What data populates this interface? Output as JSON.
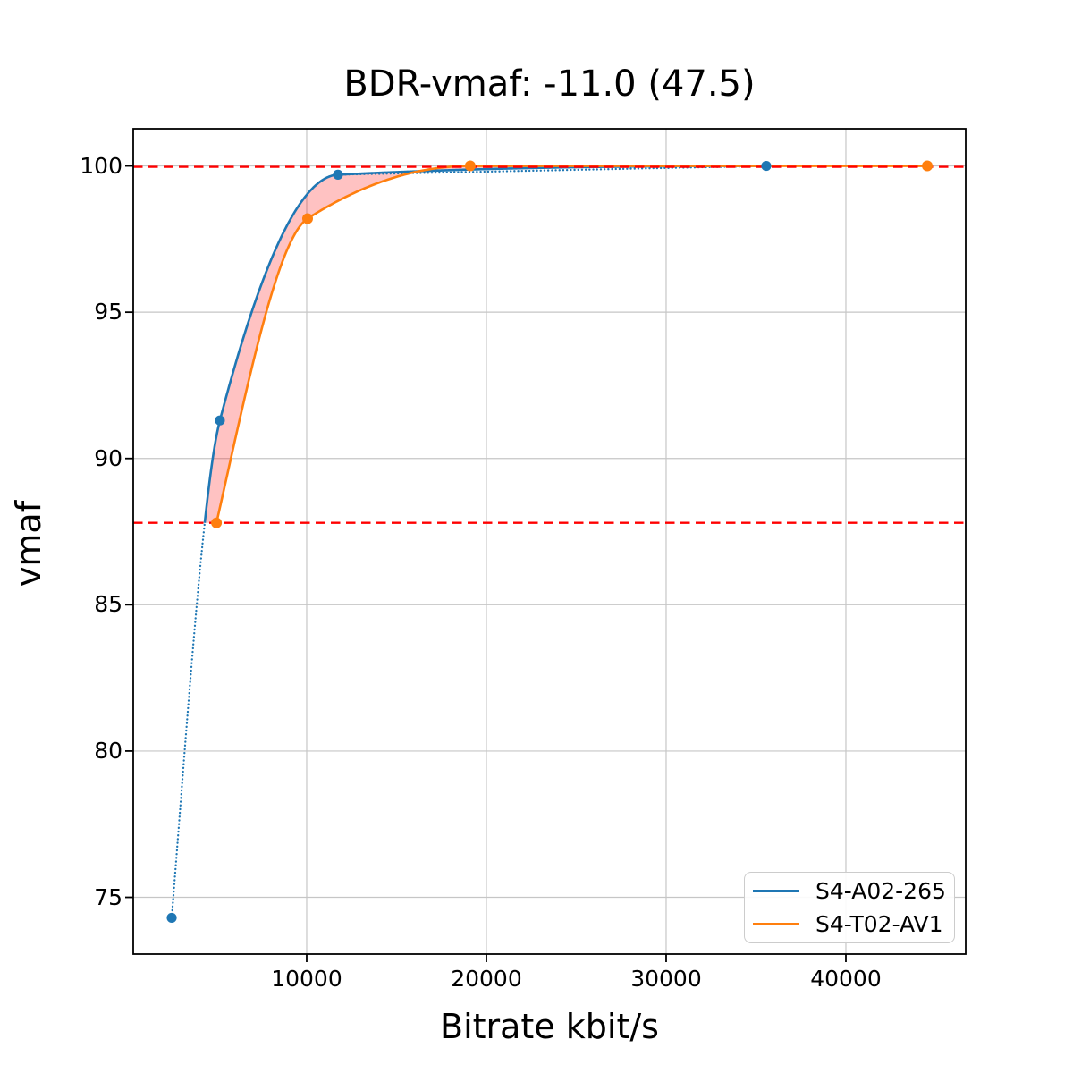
{
  "chart_data": {
    "type": "line",
    "title": "BDR-vmaf: -11.0 (47.5)",
    "xlabel": "Bitrate kbit/s",
    "ylabel": "vmaf",
    "xlim": [
      349,
      46667
    ],
    "ylim": [
      73.06,
      101.27
    ],
    "xticks": [
      10000,
      20000,
      30000,
      40000
    ],
    "yticks": [
      75,
      80,
      85,
      90,
      95,
      100
    ],
    "grid": true,
    "grid_color": "#c6c6c6",
    "background": "#ffffff",
    "series": [
      {
        "name": "S4-A02-265",
        "color": "#1f77b4",
        "points": [
          [
            2490,
            74.3
          ],
          [
            5170,
            91.3
          ],
          [
            11740,
            99.7
          ],
          [
            35570,
            100.0
          ]
        ],
        "solid_vmaf_min": 87.8,
        "dotted_tail_below_solid": true,
        "dotted_chord_last_segment": true
      },
      {
        "name": "S4-T02-AV1",
        "color": "#ff7f0e",
        "points": [
          [
            4980,
            87.8
          ],
          [
            10050,
            98.2
          ],
          [
            19100,
            100.0
          ],
          [
            44530,
            100.0
          ]
        ],
        "solid_vmaf_min": 87.8,
        "dotted_tail_below_solid": false,
        "dotted_chord_last_segment": false
      }
    ],
    "reference_lines": [
      {
        "y": 99.97,
        "color": "#ff0000",
        "style": "dashed"
      },
      {
        "y": 87.8,
        "color": "#ff0000",
        "style": "dashed"
      }
    ],
    "fill_between": {
      "between": [
        "S4-A02-265",
        "S4-T02-AV1"
      ],
      "color": "#ff0000",
      "opacity": 0.24,
      "vmaf_min": 87.8
    },
    "legend": {
      "position": "lower-right",
      "entries": [
        "S4-A02-265",
        "S4-T02-AV1"
      ]
    }
  }
}
